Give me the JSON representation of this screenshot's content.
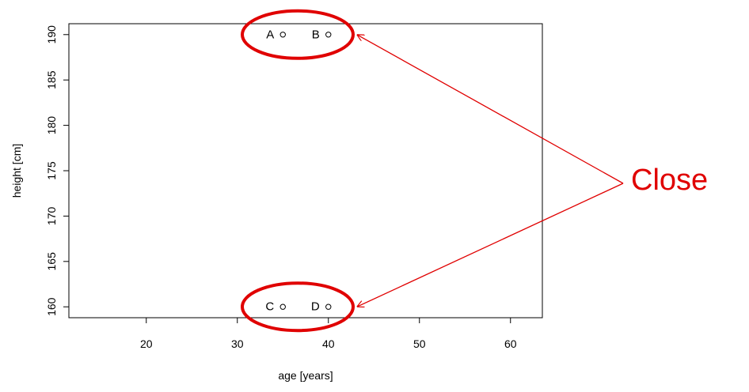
{
  "chart_data": {
    "type": "scatter",
    "title": "",
    "xlabel": "age [years]",
    "ylabel": "height [cm]",
    "xlim": [
      11.5,
      63.5
    ],
    "ylim": [
      158.8,
      191.2
    ],
    "xticks": [
      20,
      30,
      40,
      50,
      60
    ],
    "yticks": [
      160,
      165,
      170,
      175,
      180,
      185,
      190
    ],
    "grid": false,
    "points": [
      {
        "label": "A",
        "x": 35,
        "y": 190
      },
      {
        "label": "B",
        "x": 40,
        "y": 190
      },
      {
        "label": "C",
        "x": 35,
        "y": 160
      },
      {
        "label": "D",
        "x": 40,
        "y": 160
      }
    ],
    "annotation": {
      "text": "Close",
      "color": "#e00000",
      "targets": [
        "B",
        "D"
      ],
      "circled_groups": [
        [
          "A",
          "B"
        ],
        [
          "C",
          "D"
        ]
      ]
    }
  }
}
